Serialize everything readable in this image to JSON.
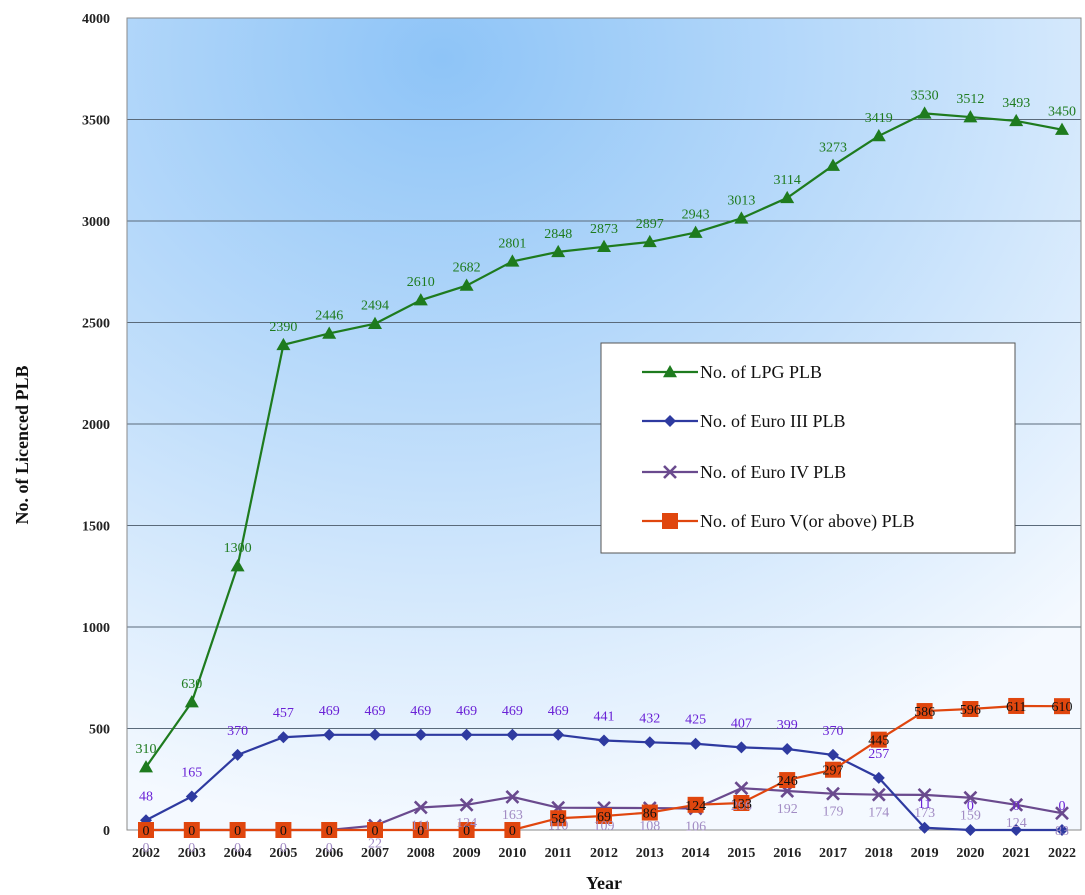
{
  "chart_data": {
    "type": "line",
    "xlabel": "Year",
    "ylabel": "No. of Licenced PLB",
    "ylim": [
      0,
      4000
    ],
    "yticks": [
      0,
      500,
      1000,
      1500,
      2000,
      2500,
      3000,
      3500,
      4000
    ],
    "grid": true,
    "legend_position": "right-middle",
    "categories": [
      "2002",
      "2003",
      "2004",
      "2005",
      "2006",
      "2007",
      "2008",
      "2009",
      "2010",
      "2011",
      "2012",
      "2013",
      "2014",
      "2015",
      "2016",
      "2017",
      "2018",
      "2019",
      "2020",
      "2021",
      "2022"
    ],
    "series": [
      {
        "name": "No. of LPG PLB",
        "color": "#1e7b1e",
        "label_color": "#1e7b1e",
        "marker": "triangle",
        "values": [
          310,
          630,
          1300,
          2390,
          2446,
          2494,
          2610,
          2682,
          2801,
          2848,
          2873,
          2897,
          2943,
          3013,
          3114,
          3273,
          3419,
          3530,
          3512,
          3493,
          3450
        ]
      },
      {
        "name": "No. of Euro III PLB",
        "color": "#2e3aa0",
        "label_color": "#6a22d6",
        "marker": "diamond",
        "values": [
          48,
          165,
          370,
          457,
          469,
          469,
          469,
          469,
          469,
          469,
          441,
          432,
          425,
          407,
          399,
          370,
          257,
          11,
          0,
          0,
          0
        ]
      },
      {
        "name": "No. of Euro IV PLB",
        "color": "#6a4a8e",
        "label_color": "#a28cc4",
        "marker": "x",
        "values": [
          0,
          0,
          0,
          0,
          0,
          22,
          111,
          124,
          163,
          110,
          109,
          108,
          106,
          206,
          192,
          179,
          174,
          173,
          159,
          124,
          83
        ]
      },
      {
        "name": "No. of Euro V(or above) PLB",
        "color": "#e0460e",
        "label_color": "#111111",
        "marker": "square",
        "values": [
          0,
          0,
          0,
          0,
          0,
          0,
          0,
          0,
          0,
          58,
          69,
          86,
          124,
          133,
          246,
          297,
          445,
          586,
          596,
          611,
          610
        ]
      }
    ]
  }
}
